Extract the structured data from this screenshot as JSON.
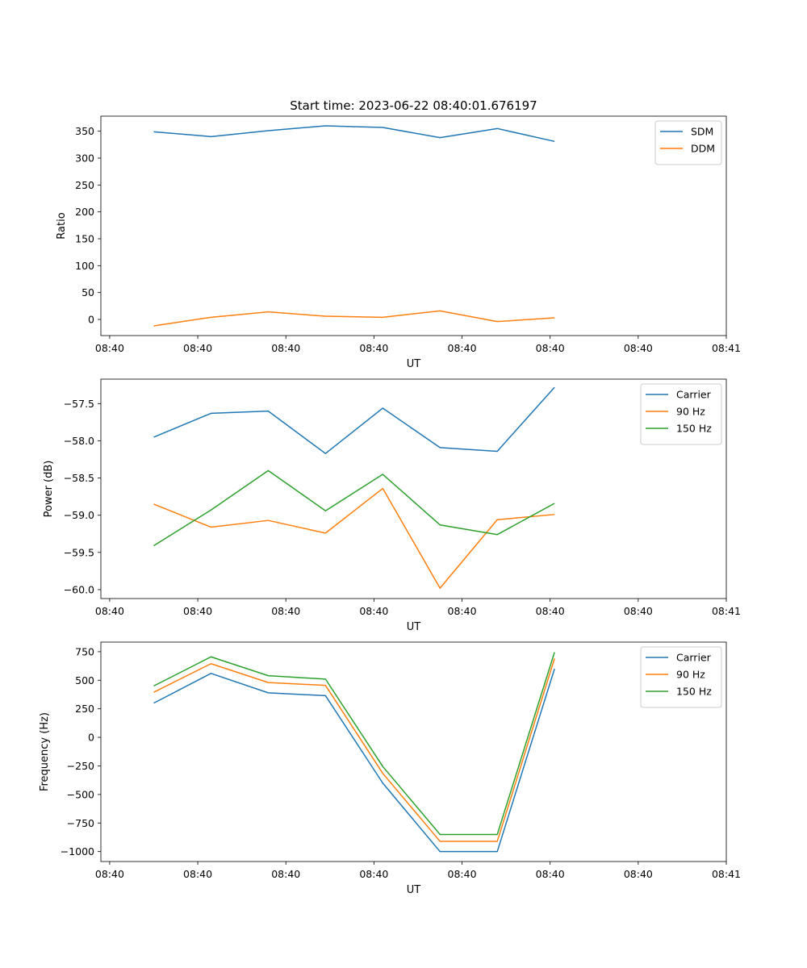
{
  "title": "Start time: 2023-06-22 08:40:01.676197",
  "colors": {
    "blue": "#1f77b4",
    "orange": "#ff7f0e",
    "green": "#2ca02c",
    "axis": "#000000"
  },
  "chart_data": [
    {
      "type": "line",
      "title": "Start time: 2023-06-22 08:40:01.676197",
      "xlabel": "UT",
      "ylabel": "Ratio",
      "x_tick_labels": [
        "08:40",
        "08:40",
        "08:40",
        "08:40",
        "08:40",
        "08:40",
        "08:40",
        "08:41"
      ],
      "x_tick_positions": [
        0,
        1,
        2,
        3,
        4,
        5,
        6,
        7
      ],
      "xlim": [
        -0.1,
        7.0
      ],
      "x": [
        0.5,
        1.15,
        1.8,
        2.45,
        3.1,
        3.75,
        4.4,
        5.05
      ],
      "yticks": [
        0,
        50,
        100,
        150,
        200,
        250,
        300,
        350
      ],
      "ylim": [
        -30,
        378
      ],
      "legend": "top-right",
      "series": [
        {
          "name": "SDM",
          "color": "#1f77b4",
          "values": [
            349,
            340,
            351,
            360,
            357,
            338,
            355,
            331
          ]
        },
        {
          "name": "DDM",
          "color": "#ff7f0e",
          "values": [
            -12,
            4,
            14,
            6,
            4,
            16,
            -4,
            3
          ]
        }
      ]
    },
    {
      "type": "line",
      "xlabel": "UT",
      "ylabel": "Power (dB)",
      "x_tick_labels": [
        "08:40",
        "08:40",
        "08:40",
        "08:40",
        "08:40",
        "08:40",
        "08:40",
        "08:41"
      ],
      "x_tick_positions": [
        0,
        1,
        2,
        3,
        4,
        5,
        6,
        7
      ],
      "xlim": [
        -0.1,
        7.0
      ],
      "x": [
        0.5,
        1.15,
        1.8,
        2.45,
        3.1,
        3.75,
        4.4,
        5.05
      ],
      "yticks": [
        -60.0,
        -59.5,
        -59.0,
        -58.5,
        -58.0,
        -57.5
      ],
      "ytick_labels": [
        "−60.0",
        "−59.5",
        "−59.0",
        "−58.5",
        "−58.0",
        "−57.5"
      ],
      "ylim": [
        -60.12,
        -57.17
      ],
      "legend": "top-right",
      "series": [
        {
          "name": "Carrier",
          "color": "#1f77b4",
          "values": [
            -57.95,
            -57.63,
            -57.6,
            -58.17,
            -57.56,
            -58.09,
            -58.14,
            -57.28
          ]
        },
        {
          "name": "90 Hz",
          "color": "#ff7f0e",
          "values": [
            -58.85,
            -59.16,
            -59.07,
            -59.24,
            -58.64,
            -59.98,
            -59.06,
            -58.99
          ]
        },
        {
          "name": "150 Hz",
          "color": "#2ca02c",
          "values": [
            -59.41,
            -58.93,
            -58.4,
            -58.94,
            -58.45,
            -59.13,
            -59.26,
            -58.84
          ]
        }
      ]
    },
    {
      "type": "line",
      "xlabel": "UT",
      "ylabel": "Frequency (Hz)",
      "x_tick_labels": [
        "08:40",
        "08:40",
        "08:40",
        "08:40",
        "08:40",
        "08:40",
        "08:40",
        "08:41"
      ],
      "x_tick_positions": [
        0,
        1,
        2,
        3,
        4,
        5,
        6,
        7
      ],
      "xlim": [
        -0.1,
        7.0
      ],
      "x": [
        0.5,
        1.15,
        1.8,
        2.45,
        3.1,
        3.75,
        4.4,
        5.05
      ],
      "yticks": [
        -1000,
        -750,
        -500,
        -250,
        0,
        250,
        500,
        750
      ],
      "ytick_labels": [
        "−1000",
        "−750",
        "−500",
        "−250",
        "0",
        "250",
        "500",
        "750"
      ],
      "ylim": [
        -1087,
        834
      ],
      "legend": "top-right",
      "series": [
        {
          "name": "Carrier",
          "color": "#1f77b4",
          "values": [
            300,
            560,
            390,
            365,
            -400,
            -1000,
            -1000,
            600
          ]
        },
        {
          "name": "90 Hz",
          "color": "#ff7f0e",
          "values": [
            395,
            645,
            480,
            455,
            -315,
            -910,
            -910,
            690
          ]
        },
        {
          "name": "150 Hz",
          "color": "#2ca02c",
          "values": [
            450,
            705,
            540,
            510,
            -255,
            -850,
            -850,
            745
          ]
        }
      ]
    }
  ]
}
